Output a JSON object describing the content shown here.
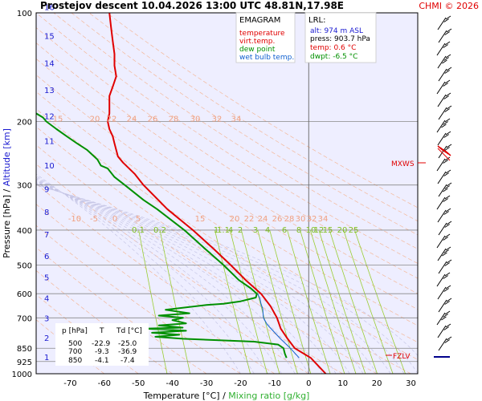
{
  "header": {
    "title": "Prostejov   descent   10.04.2026 13:00 UTC  48.81N,17.98E",
    "brand": "CHMI © 2026"
  },
  "legend": {
    "title": "EMAGRAM",
    "items": [
      {
        "label": "temperature",
        "color": "#e00000"
      },
      {
        "label": "virt.temp.",
        "color": "#e00000"
      },
      {
        "label": "dew point",
        "color": "#009000"
      },
      {
        "label": "wet bulb temp.",
        "color": "#1060d0"
      }
    ]
  },
  "info": {
    "title": "LRL:",
    "lines": [
      {
        "text": "alt: 974 m ASL",
        "color": "#1a1ad0"
      },
      {
        "text": "press: 903.7 hPa",
        "color": "#000000"
      },
      {
        "text": "temp: 0.6 °C",
        "color": "#e00000"
      },
      {
        "text": "dwpt: -6.5 °C",
        "color": "#009000"
      }
    ]
  },
  "table": {
    "headers": [
      "p [hPa]",
      "T",
      "Td [°C]"
    ],
    "rows": [
      [
        "500",
        "-22.9",
        "-25.0"
      ],
      [
        "700",
        "-9.3",
        "-36.9"
      ],
      [
        "850",
        "-4.1",
        "-7.4"
      ]
    ]
  },
  "axes": {
    "ylabel_pressure": "Pressure [hPa]",
    "ylabel_sep": " / ",
    "ylabel_altitude": "Altitude [km]",
    "xlabel_temp": "Temperature [°C]",
    "xlabel_sep": " / ",
    "xlabel_mix": "Mixing ratio [g/kg]"
  },
  "markers": {
    "mxws": "MXWS",
    "fzlv": "FZLV"
  },
  "chart_data": {
    "type": "line",
    "y_scale": "log",
    "xlim": [
      -80,
      32
    ],
    "ylim": [
      1000,
      100
    ],
    "x_ticks": [
      -70,
      -60,
      -50,
      -40,
      -30,
      -20,
      -10,
      0,
      10,
      20,
      30
    ],
    "pressure_ticks": [
      100,
      200,
      300,
      400,
      500,
      600,
      700,
      850,
      925,
      1000
    ],
    "altitude_ticks_km": [
      1,
      2,
      3,
      4,
      5,
      6,
      7,
      8,
      9,
      10,
      11,
      12,
      13,
      14,
      15,
      16
    ],
    "mixing_ratio_labels": [
      "0.1",
      "0.2",
      "1",
      "1.1",
      "4",
      "2",
      "3",
      "4",
      "6",
      "8",
      "10",
      "12",
      "15",
      "20",
      "25"
    ],
    "dry_adiabat_labels_upper": [
      "15",
      "20",
      "22",
      "24",
      "26",
      "28",
      "30",
      "32",
      "34"
    ],
    "dry_adiabat_labels_mid": [
      "-10",
      "-5",
      "0",
      "5",
      "15",
      "20",
      "22",
      "24",
      "26",
      "28",
      "30",
      "32",
      "34"
    ],
    "series": [
      {
        "name": "temperature",
        "color": "#e00000",
        "points": [
          [
            1000,
            5
          ],
          [
            903.7,
            0.6
          ],
          [
            850,
            -4.1
          ],
          [
            800,
            -6.2
          ],
          [
            750,
            -8.2
          ],
          [
            700,
            -9.3
          ],
          [
            650,
            -11.2
          ],
          [
            600,
            -14.0
          ],
          [
            550,
            -18.5
          ],
          [
            500,
            -22.9
          ],
          [
            450,
            -28.0
          ],
          [
            400,
            -34.0
          ],
          [
            350,
            -41.5
          ],
          [
            300,
            -48.5
          ],
          [
            280,
            -51
          ],
          [
            260,
            -54.5
          ],
          [
            250,
            -56
          ],
          [
            240,
            -56.5
          ],
          [
            230,
            -57
          ],
          [
            220,
            -57.5
          ],
          [
            210,
            -58.5
          ],
          [
            200,
            -59
          ],
          [
            190,
            -58.5
          ],
          [
            180,
            -58.5
          ],
          [
            170,
            -58.5
          ],
          [
            160,
            -57.5
          ],
          [
            150,
            -56.5
          ],
          [
            140,
            -57
          ],
          [
            130,
            -57
          ],
          [
            120,
            -57.5
          ],
          [
            110,
            -58
          ],
          [
            100,
            -58.5
          ]
        ]
      },
      {
        "name": "dew point",
        "color": "#009000",
        "points": [
          [
            903.7,
            -6.5
          ],
          [
            880,
            -7
          ],
          [
            850,
            -7.4
          ],
          [
            830,
            -9
          ],
          [
            815,
            -16
          ],
          [
            805,
            -30
          ],
          [
            800,
            -37
          ],
          [
            790,
            -45
          ],
          [
            780,
            -38
          ],
          [
            770,
            -46
          ],
          [
            760,
            -36
          ],
          [
            750,
            -48
          ],
          [
            745,
            -37
          ],
          [
            735,
            -44
          ],
          [
            725,
            -36
          ],
          [
            710,
            -40
          ],
          [
            700,
            -36.9
          ],
          [
            690,
            -44
          ],
          [
            680,
            -35
          ],
          [
            665,
            -42
          ],
          [
            655,
            -36
          ],
          [
            645,
            -30
          ],
          [
            640,
            -25
          ],
          [
            630,
            -20
          ],
          [
            615,
            -15.5
          ],
          [
            600,
            -15.2
          ],
          [
            580,
            -17
          ],
          [
            550,
            -20.5
          ],
          [
            500,
            -25.0
          ],
          [
            450,
            -30.5
          ],
          [
            400,
            -36.5
          ],
          [
            350,
            -44.5
          ],
          [
            330,
            -48.5
          ],
          [
            300,
            -54
          ],
          [
            285,
            -57
          ],
          [
            270,
            -59
          ],
          [
            265,
            -61
          ],
          [
            255,
            -62
          ],
          [
            240,
            -65
          ],
          [
            230,
            -68
          ],
          [
            220,
            -71
          ],
          [
            210,
            -74
          ],
          [
            200,
            -77
          ],
          [
            195,
            -78
          ],
          [
            190,
            -80
          ]
        ]
      },
      {
        "name": "wet bulb temp.",
        "color": "#1060d0",
        "points": [
          [
            903.7,
            -2.8
          ],
          [
            850,
            -5.4
          ],
          [
            800,
            -8.3
          ],
          [
            760,
            -10.5
          ],
          [
            730,
            -12.2
          ],
          [
            700,
            -13.3
          ],
          [
            660,
            -13.5
          ],
          [
            640,
            -14.0
          ],
          [
            620,
            -14.3
          ],
          [
            600,
            -15.0
          ]
        ]
      }
    ]
  }
}
